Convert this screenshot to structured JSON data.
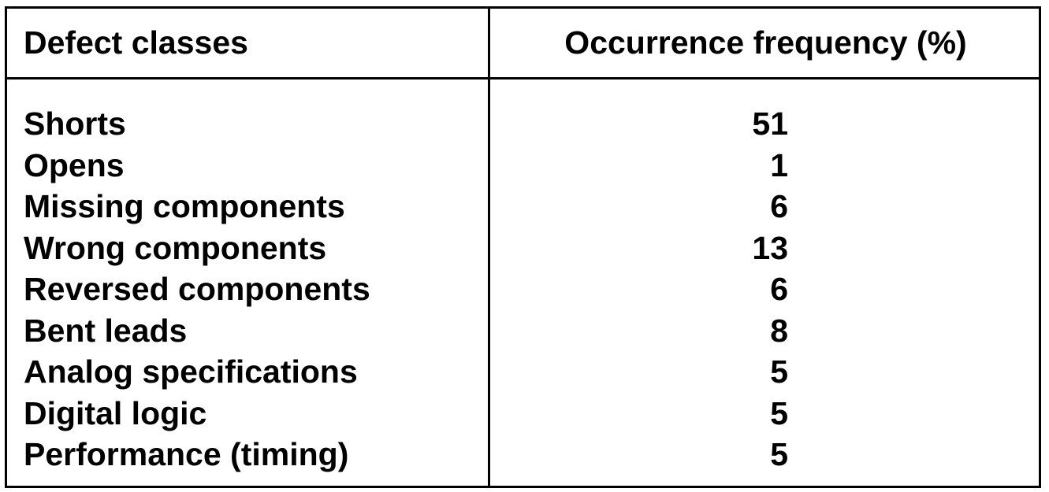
{
  "table": {
    "headers": {
      "defect_class": "Defect classes",
      "occurrence": "Occurrence frequency (%)"
    },
    "rows": [
      {
        "label": "Shorts",
        "value": "51"
      },
      {
        "label": "Opens",
        "value": "1"
      },
      {
        "label": "Missing components",
        "value": "6"
      },
      {
        "label": "Wrong components",
        "value": "13"
      },
      {
        "label": "Reversed components",
        "value": "6"
      },
      {
        "label": "Bent leads",
        "value": "8"
      },
      {
        "label": "Analog specifications",
        "value": "5"
      },
      {
        "label": "Digital logic",
        "value": "5"
      },
      {
        "label": "Performance (timing)",
        "value": "5"
      }
    ]
  }
}
